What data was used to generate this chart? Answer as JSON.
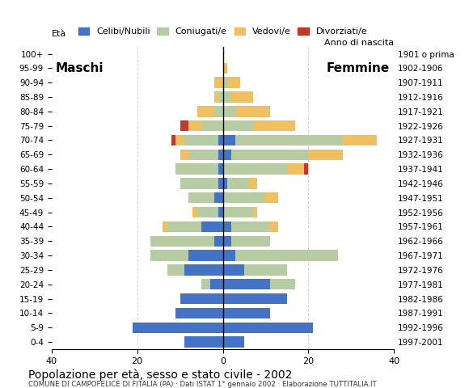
{
  "age_groups": [
    "0-4",
    "5-9",
    "10-14",
    "15-19",
    "20-24",
    "25-29",
    "30-34",
    "35-39",
    "40-44",
    "45-49",
    "50-54",
    "55-59",
    "60-64",
    "65-69",
    "70-74",
    "75-79",
    "80-84",
    "85-89",
    "90-94",
    "95-99",
    "100+"
  ],
  "birth_years": [
    "1997-2001",
    "1992-1996",
    "1987-1991",
    "1982-1986",
    "1977-1981",
    "1972-1976",
    "1967-1971",
    "1962-1966",
    "1957-1961",
    "1952-1956",
    "1947-1951",
    "1942-1946",
    "1937-1941",
    "1932-1936",
    "1927-1931",
    "1922-1926",
    "1917-1921",
    "1912-1916",
    "1907-1911",
    "1902-1906",
    "1901 o prima"
  ],
  "maschi": {
    "celibe": [
      9,
      21,
      11,
      10,
      3,
      9,
      8,
      2,
      5,
      1,
      2,
      1,
      1,
      1,
      1,
      0,
      0,
      0,
      0,
      0,
      0
    ],
    "coniugato": [
      0,
      0,
      0,
      0,
      2,
      4,
      9,
      15,
      8,
      5,
      6,
      9,
      10,
      7,
      8,
      5,
      2,
      1,
      0,
      0,
      0
    ],
    "vedovo": [
      0,
      0,
      0,
      0,
      0,
      0,
      0,
      0,
      1,
      1,
      0,
      0,
      0,
      2,
      2,
      3,
      4,
      1,
      2,
      0,
      0
    ],
    "divorziato": [
      0,
      0,
      0,
      0,
      0,
      0,
      0,
      0,
      0,
      0,
      0,
      0,
      0,
      0,
      1,
      2,
      0,
      0,
      0,
      0,
      0
    ]
  },
  "femmine": {
    "nubile": [
      5,
      21,
      11,
      15,
      11,
      5,
      3,
      2,
      2,
      0,
      0,
      1,
      0,
      2,
      3,
      0,
      0,
      0,
      0,
      0,
      0
    ],
    "coniugata": [
      0,
      0,
      0,
      0,
      6,
      10,
      24,
      9,
      9,
      7,
      10,
      5,
      15,
      18,
      25,
      7,
      3,
      2,
      1,
      0,
      0
    ],
    "vedova": [
      0,
      0,
      0,
      0,
      0,
      0,
      0,
      0,
      2,
      1,
      3,
      2,
      4,
      8,
      8,
      10,
      8,
      5,
      3,
      1,
      0
    ],
    "divorziata": [
      0,
      0,
      0,
      0,
      0,
      0,
      0,
      0,
      0,
      0,
      0,
      0,
      1,
      0,
      0,
      0,
      0,
      0,
      0,
      0,
      0
    ]
  },
  "colors": {
    "celibe": "#4472c4",
    "coniugato": "#b8cca4",
    "vedovo": "#f0c060",
    "divorziato": "#c0392b"
  },
  "xlim": 40,
  "title": "Popolazione per età, sesso e stato civile - 2002",
  "subtitle": "COMUNE DI CAMPOFELICE DI FITALIA (PA) · Dati ISTAT 1° gennaio 2002 · Elaborazione TUTTITALIA.IT",
  "legend_labels": [
    "Celibi/Nubili",
    "Coniugati/e",
    "Vedovi/e",
    "Divorziati/e"
  ],
  "ylabel_left": "Età",
  "ylabel_right": "Anno di nascita",
  "label_maschi": "Maschi",
  "label_femmine": "Femmine"
}
